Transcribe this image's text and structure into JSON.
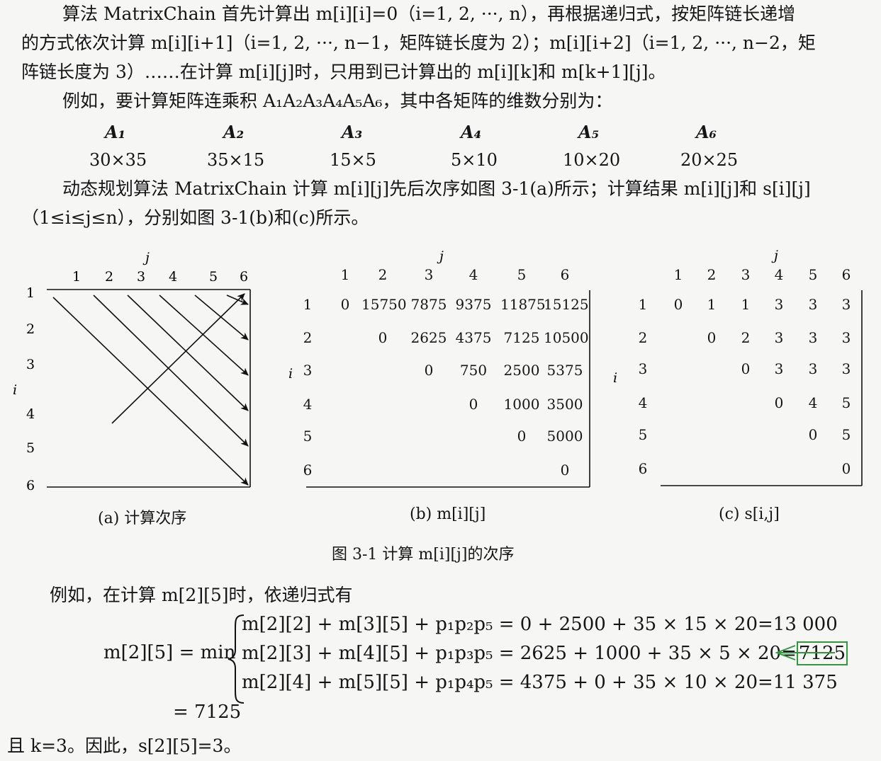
{
  "paragraph1": {
    "line1": "算法 MatrixChain 首先计算出 m[i][i]=0（i=1, 2, ···, n），再根据递归式，按矩阵链长递增",
    "line2": "的方式依次计算 m[i][i+1]（i=1, 2, ···, n−1，矩阵链长度为 2）；m[i][i+2]（i=1, 2, ···, n−2，矩",
    "line3": "阵链长度为 3）……在计算 m[i][j]时，只用到已计算出的 m[i][k]和 m[k+1][j]。"
  },
  "paragraph2": {
    "line1": "例如，要计算矩阵连乘积 A₁A₂A₃A₄A₅A₆，其中各矩阵的维数分别为："
  },
  "matrices": [
    {
      "name": "A₁",
      "dim": "30×35"
    },
    {
      "name": "A₂",
      "dim": "35×15"
    },
    {
      "name": "A₃",
      "dim": "15×5"
    },
    {
      "name": "A₄",
      "dim": "5×10"
    },
    {
      "name": "A₅",
      "dim": "10×20"
    },
    {
      "name": "A₆",
      "dim": "20×25"
    }
  ],
  "paragraph3": {
    "line1": "动态规划算法 MatrixChain 计算 m[i][j]先后次序如图 3-1(a)所示；计算结果 m[i][j]和 s[i][j]",
    "line2": "（1≤i≤j≤n），分别如图 3-1(b)和(c)所示。"
  },
  "figure": {
    "axis_j": "j",
    "axis_i": "i",
    "indices": [
      "1",
      "2",
      "3",
      "4",
      "5",
      "6"
    ],
    "panel_a_caption": "(a) 计算次序",
    "panel_b_caption": "(b) m[i][j]",
    "panel_c_caption": "(c) s[i,j]",
    "caption": "图 3-1   计算 m[i][j]的次序",
    "m_table": [
      [
        "0",
        "15750",
        "7875",
        "9375",
        "11875",
        "15125"
      ],
      [
        "",
        "0",
        "2625",
        "4375",
        "7125",
        "10500"
      ],
      [
        "",
        "",
        "0",
        "750",
        "2500",
        "5375"
      ],
      [
        "",
        "",
        "",
        "0",
        "1000",
        "3500"
      ],
      [
        "",
        "",
        "",
        "",
        "0",
        "5000"
      ],
      [
        "",
        "",
        "",
        "",
        "",
        "0"
      ]
    ],
    "s_table": [
      [
        "0",
        "1",
        "1",
        "3",
        "3",
        "3"
      ],
      [
        "",
        "0",
        "2",
        "3",
        "3",
        "3"
      ],
      [
        "",
        "",
        "0",
        "3",
        "3",
        "3"
      ],
      [
        "",
        "",
        "",
        "0",
        "4",
        "5"
      ],
      [
        "",
        "",
        "",
        "",
        "0",
        "5"
      ],
      [
        "",
        "",
        "",
        "",
        "",
        "0"
      ]
    ]
  },
  "example": {
    "intro": "例如，在计算 m[2][5]时，依递归式有",
    "lhs": "m[2][5] = min",
    "case1": "m[2][2] + m[3][5] + p₁p₂p₅ = 0 + 2500 + 35 × 15 × 20=13 000",
    "case2_prefix": "m[2][3] + m[4][5] + p₁p₃p₅ = 2625 + 1000 + 35 × 5 × 20=",
    "case2_value": "7125",
    "case3": "m[2][4] + m[5][5] + p₁p₄p₅ = 4375 + 0 + 35 × 10 × 20=11 375",
    "result": "= 7125",
    "conclusion": "且 k=3。因此，s[2][5]=3。",
    "highlight_color": "#2e9a3c"
  }
}
